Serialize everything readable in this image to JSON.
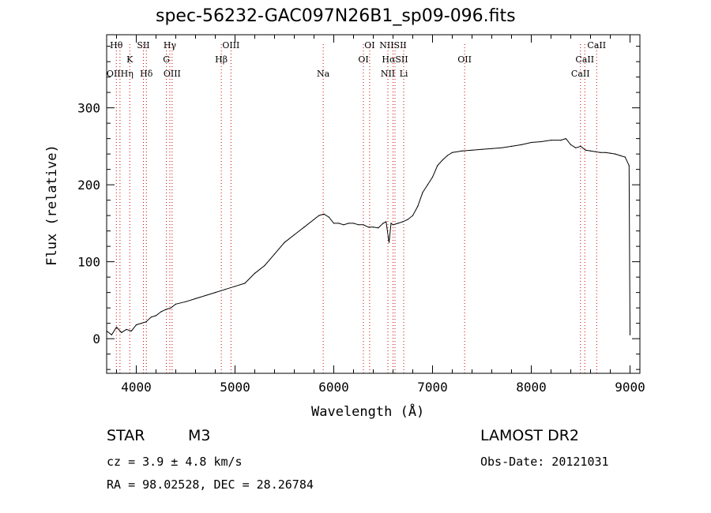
{
  "chart_data": {
    "type": "line",
    "title": "spec-56232-GAC097N26B1_sp09-096.fits",
    "xlabel": "Wavelength (Å)",
    "ylabel": "Flux (relative)",
    "xlim": [
      3700,
      9100
    ],
    "ylim": [
      -45,
      395
    ],
    "x_ticks": [
      4000,
      5000,
      6000,
      7000,
      8000,
      9000
    ],
    "y_ticks": [
      0,
      100,
      200,
      300
    ],
    "grid": false,
    "legend": "none",
    "series": [
      {
        "x": [
          3700,
          3750,
          3800,
          3850,
          3900,
          3950,
          4000,
          4050,
          4100,
          4150,
          4200,
          4250,
          4300,
          4350,
          4400,
          4500,
          4600,
          4700,
          4800,
          4900,
          5000,
          5100,
          5200,
          5300,
          5400,
          5500,
          5600,
          5700,
          5800,
          5850,
          5900,
          5950,
          6000,
          6050,
          6100,
          6150,
          6200,
          6250,
          6300,
          6350,
          6400,
          6450,
          6500,
          6530,
          6560,
          6580,
          6600,
          6650,
          6700,
          6750,
          6800,
          6850,
          6900,
          6950,
          7000,
          7050,
          7100,
          7150,
          7200,
          7300,
          7400,
          7500,
          7600,
          7700,
          7800,
          7900,
          8000,
          8100,
          8200,
          8300,
          8350,
          8400,
          8450,
          8500,
          8550,
          8600,
          8650,
          8700,
          8750,
          8800,
          8850,
          8900,
          8950,
          8990,
          9000
        ],
        "y": [
          10,
          5,
          15,
          8,
          12,
          10,
          18,
          20,
          22,
          28,
          30,
          35,
          38,
          40,
          45,
          48,
          52,
          56,
          60,
          64,
          68,
          72,
          85,
          95,
          110,
          125,
          135,
          145,
          155,
          160,
          162,
          158,
          150,
          150,
          148,
          150,
          150,
          148,
          148,
          145,
          145,
          144,
          150,
          152,
          125,
          150,
          148,
          150,
          152,
          155,
          160,
          172,
          190,
          200,
          210,
          225,
          232,
          238,
          242,
          244,
          245,
          246,
          247,
          248,
          250,
          252,
          255,
          256,
          258,
          258,
          260,
          252,
          248,
          250,
          245,
          244,
          243,
          242,
          242,
          241,
          240,
          238,
          236,
          225,
          5
        ]
      }
    ],
    "lines": [
      {
        "name": "Hθ",
        "wave": 3798,
        "row": 0
      },
      {
        "name": "K",
        "wave": 3934,
        "row": 1
      },
      {
        "name": "OIIHη",
        "wave": 3835,
        "row": 2
      },
      {
        "name": "SII",
        "wave": 4072,
        "row": 0
      },
      {
        "name": "Hδ",
        "wave": 4102,
        "row": 2
      },
      {
        "name": "Hγ",
        "wave": 4340,
        "row": 0
      },
      {
        "name": "G",
        "wave": 4305,
        "row": 1
      },
      {
        "name": "OIII",
        "wave": 4363,
        "row": 2
      },
      {
        "name": "OIII",
        "wave": 4959,
        "row": 0
      },
      {
        "name": "Hβ",
        "wave": 4861,
        "row": 1
      },
      {
        "name": "Na",
        "wave": 5893,
        "row": 2
      },
      {
        "name": "OI",
        "wave": 6363,
        "row": 0
      },
      {
        "name": "OI",
        "wave": 6300,
        "row": 1
      },
      {
        "name": "NIISII",
        "wave": 6600,
        "row": 0
      },
      {
        "name": "HαSII",
        "wave": 6620,
        "row": 1
      },
      {
        "name": "NII",
        "wave": 6548,
        "row": 2
      },
      {
        "name": "Li",
        "wave": 6708,
        "row": 2
      },
      {
        "name": "OII",
        "wave": 7325,
        "row": 1
      },
      {
        "name": "CaII",
        "wave": 8662,
        "row": 0
      },
      {
        "name": "CaII",
        "wave": 8542,
        "row": 1
      },
      {
        "name": "CaII",
        "wave": 8498,
        "row": 2
      }
    ]
  },
  "info": {
    "object_class": "STAR",
    "subclass": "M3",
    "survey": "LAMOST DR2",
    "cz": "cz = 3.9 ± 4.8 km/s",
    "obs_date": "Obs-Date: 20121031",
    "coords": "RA =  98.02528, DEC =  28.26784"
  },
  "colors": {
    "axis": "#000000",
    "marker_lines": "#cc0000",
    "spectrum": "#000000"
  }
}
